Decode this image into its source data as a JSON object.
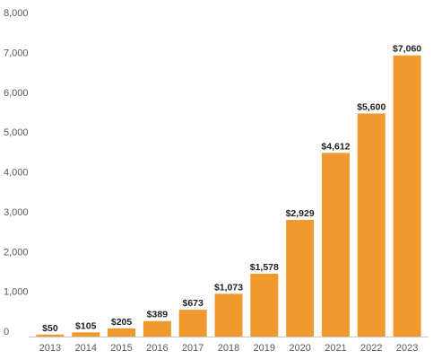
{
  "chart_data": {
    "type": "bar",
    "categories": [
      "2013",
      "2014",
      "2015",
      "2016",
      "2017",
      "2018",
      "2019",
      "2020",
      "2021",
      "2022",
      "2023"
    ],
    "values": [
      50,
      105,
      205,
      389,
      673,
      1073,
      1578,
      2929,
      4612,
      5600,
      7060
    ],
    "data_labels": [
      "$50",
      "$105",
      "$205",
      "$389",
      "$673",
      "$1,073",
      "$1,578",
      "$2,929",
      "$4,612",
      "$5,600",
      "$7,060"
    ],
    "y_ticks": [
      0,
      1000,
      2000,
      3000,
      4000,
      5000,
      6000,
      7000,
      8000
    ],
    "y_tick_labels": [
      "0",
      "1,000",
      "2,000",
      "3,000",
      "4,000",
      "5,000",
      "6,000",
      "7,000",
      "8,000"
    ],
    "ylim": [
      0,
      8000
    ],
    "grid": false,
    "legend": "none",
    "bar_color": "#F0992F",
    "label_color": "#1f1f1f",
    "tick_color": "#595959",
    "axis_color": "#c8c8c8"
  }
}
